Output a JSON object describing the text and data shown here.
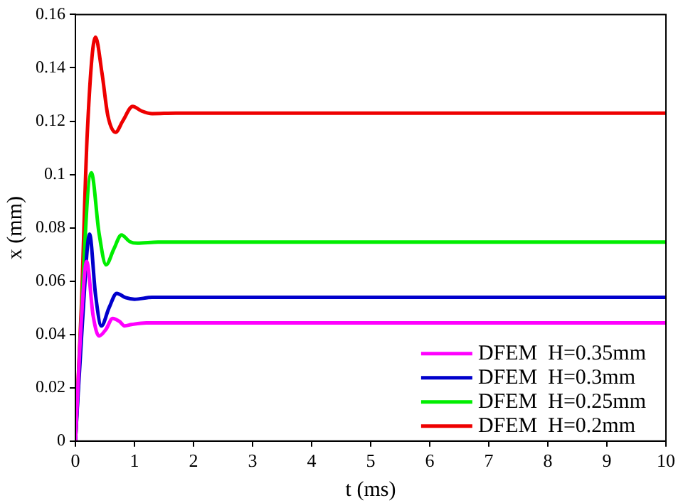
{
  "chart_data": {
    "type": "line",
    "xlabel": "t (ms)",
    "ylabel": "x (mm)",
    "xlim": [
      0,
      10
    ],
    "xticks": [
      0,
      1,
      2,
      3,
      4,
      5,
      6,
      7,
      8,
      9,
      10
    ],
    "ylim": [
      0,
      0.16
    ],
    "yticks": [
      0,
      0.02,
      0.04,
      0.06,
      0.08,
      0.1,
      0.12,
      0.14,
      0.16
    ],
    "grid": false,
    "legend": "bottom right",
    "marker": "none",
    "line_style": "solid",
    "series": [
      {
        "name": "DFEM  H=0.35mm",
        "color": "#ff00ff",
        "x": [
          0,
          0.1,
          0.19,
          0.3,
          0.4,
          0.52,
          0.63,
          0.75,
          0.83,
          0.95,
          1.2,
          1.6,
          3,
          10
        ],
        "values": [
          0,
          0.045,
          0.0674,
          0.047,
          0.0394,
          0.042,
          0.046,
          0.0448,
          0.0432,
          0.0437,
          0.0443,
          0.0443,
          0.0443,
          0.0443
        ]
      },
      {
        "name": "DFEM  H=0.3mm",
        "color": "#0000cc",
        "x": [
          0,
          0.12,
          0.24,
          0.34,
          0.44,
          0.57,
          0.7,
          0.85,
          1,
          1.3,
          2,
          10
        ],
        "values": [
          0,
          0.045,
          0.0776,
          0.055,
          0.0432,
          0.05,
          0.0554,
          0.0538,
          0.0532,
          0.0539,
          0.0539,
          0.0539
        ]
      },
      {
        "name": "DFEM  H=0.25mm",
        "color": "#00ee00",
        "x": [
          0,
          0.27,
          0.4,
          0.52,
          0.65,
          0.78,
          0.92,
          1.05,
          1.4,
          2,
          10
        ],
        "values": [
          0,
          0.1006,
          0.078,
          0.0661,
          0.072,
          0.0773,
          0.0748,
          0.0742,
          0.0746,
          0.0746,
          0.0746
        ]
      },
      {
        "name": "DFEM  H=0.2mm",
        "color": "#ee0000",
        "x": [
          0,
          0.1,
          0.2,
          0.34,
          0.45,
          0.55,
          0.68,
          0.8,
          0.97,
          1.12,
          1.3,
          1.7,
          3,
          10
        ],
        "values": [
          0,
          0.05,
          0.115,
          0.1515,
          0.138,
          0.122,
          0.1158,
          0.12,
          0.1255,
          0.1238,
          0.1228,
          0.123,
          0.123,
          0.123
        ]
      }
    ]
  }
}
